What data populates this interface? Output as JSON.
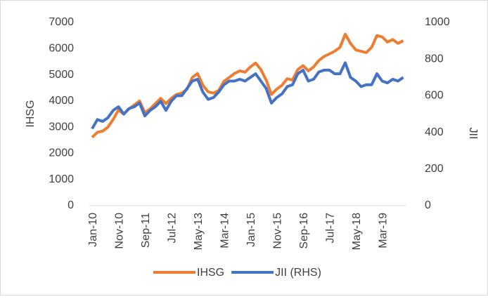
{
  "chart_data": {
    "type": "line",
    "y_label": "IHSG",
    "y2_label": "JII",
    "categories": [
      "Jan-10",
      null,
      null,
      null,
      null,
      "Nov-10",
      null,
      null,
      null,
      null,
      "Sep-11",
      null,
      null,
      null,
      null,
      "Jul-12",
      null,
      null,
      null,
      null,
      "May-13",
      null,
      null,
      null,
      null,
      "Mar-14",
      null,
      null,
      null,
      null,
      "Jan-15",
      null,
      null,
      null,
      null,
      "Nov-15",
      null,
      null,
      null,
      null,
      "Sep-16",
      null,
      null,
      null,
      null,
      "Jul-17",
      null,
      null,
      null,
      null,
      "May-18",
      null,
      null,
      null,
      null,
      "Mar-19",
      null,
      null,
      null,
      null
    ],
    "series": [
      {
        "name": "IHSG",
        "color": "#ed7d31",
        "axis": "y",
        "values": [
          2610,
          2800,
          2850,
          3000,
          3300,
          3650,
          3500,
          3700,
          3850,
          4000,
          3550,
          3700,
          3900,
          4100,
          3900,
          4100,
          4250,
          4300,
          4450,
          4900,
          5050,
          4600,
          4350,
          4300,
          4400,
          4750,
          4900,
          5050,
          5150,
          5100,
          5300,
          5450,
          5200,
          4800,
          4250,
          4450,
          4600,
          4850,
          4800,
          5200,
          5350,
          5150,
          5300,
          5550,
          5700,
          5800,
          5900,
          6050,
          6550,
          6200,
          5950,
          5900,
          5850,
          6050,
          6500,
          6450,
          6250,
          6350,
          6200,
          6300
        ]
      },
      {
        "name": "JII (RHS)",
        "color": "#4472c4",
        "axis": "y2",
        "values": [
          420,
          470,
          460,
          480,
          520,
          540,
          500,
          530,
          540,
          560,
          490,
          520,
          540,
          570,
          520,
          570,
          600,
          600,
          640,
          680,
          690,
          620,
          580,
          590,
          620,
          660,
          680,
          680,
          690,
          680,
          700,
          720,
          680,
          640,
          560,
          590,
          610,
          650,
          660,
          720,
          740,
          680,
          690,
          730,
          740,
          740,
          720,
          720,
          780,
          700,
          680,
          650,
          660,
          660,
          720,
          680,
          670,
          690,
          680,
          700
        ]
      }
    ],
    "ylim": [
      0,
      7000
    ],
    "yticks": [
      0,
      1000,
      2000,
      3000,
      4000,
      5000,
      6000,
      7000
    ],
    "y2lim": [
      0,
      1000
    ],
    "y2ticks": [
      0,
      200,
      400,
      600,
      800,
      1000
    ],
    "legend": "bottom"
  }
}
